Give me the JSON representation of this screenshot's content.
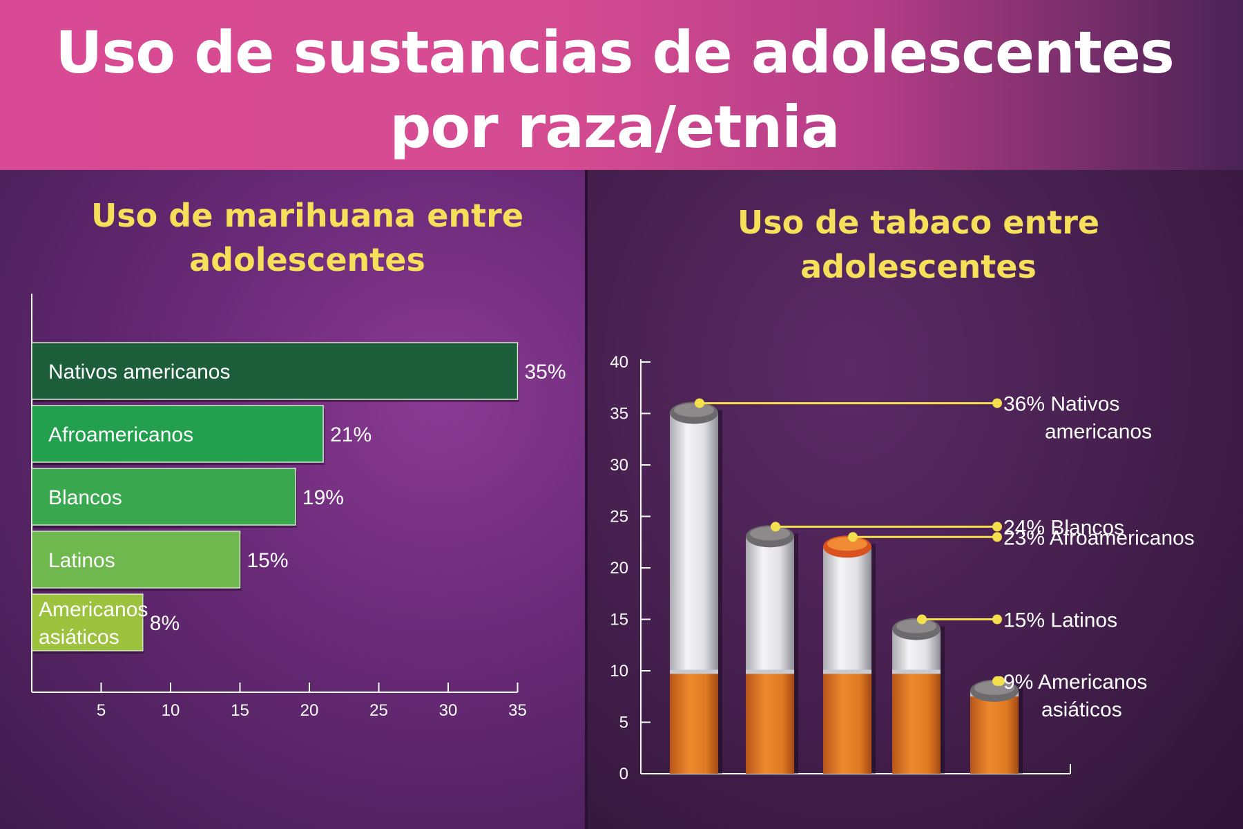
{
  "title": "Uso de sustancias de adolescentes por raza/etnia",
  "title_lines": [
    "Uso de sustancias de adolescentes",
    "por raza/etnia"
  ],
  "colors": {
    "banner": "#d84a93",
    "panel_title": "#f6e05a",
    "callout_line": "#f4e04e",
    "filter": "#e67e22",
    "paper": "#e6e6ea"
  },
  "chart_data": [
    {
      "type": "bar",
      "orientation": "horizontal",
      "title": "Uso de marihuana entre adolescentes",
      "title_lines": [
        "Uso de marihuana entre",
        "adolescentes"
      ],
      "categories": [
        "Nativos americanos",
        "Afroamericanos",
        "Blancos",
        "Latinos",
        "Americanos asiáticos"
      ],
      "category_lines": [
        [
          "Nativos americanos"
        ],
        [
          "Afroamericanos"
        ],
        [
          "Blancos"
        ],
        [
          "Latinos"
        ],
        [
          "Americanos",
          "asiáticos"
        ]
      ],
      "values": [
        35,
        21,
        19,
        15,
        8
      ],
      "value_labels": [
        "35%",
        "21%",
        "19%",
        "15%",
        "8%"
      ],
      "bar_colors": [
        "#1c5e3a",
        "#22a04e",
        "#3aa84e",
        "#6fb84e",
        "#9cc23e"
      ],
      "xticks": [
        5,
        10,
        15,
        20,
        25,
        30,
        35
      ],
      "xlim": [
        0,
        35
      ],
      "xlabel": "",
      "ylabel": "",
      "grid": false
    },
    {
      "type": "bar",
      "style": "cigarettes",
      "title": "Uso de tabaco entre adolescentes",
      "title_lines": [
        "Uso de tabaco entre",
        "adolescentes"
      ],
      "categories": [
        "Nativos americanos",
        "Blancos",
        "Afroamericanos",
        "Latinos",
        "Americanos asiáticos"
      ],
      "bar_order": [
        "Nativos americanos",
        "Blancos",
        "Afroamericanos",
        "Latinos",
        "Americanos asiáticos"
      ],
      "values": [
        36,
        24,
        23,
        15,
        9
      ],
      "callouts": [
        [
          "36% Nativos",
          "americanos"
        ],
        [
          "24% Blancos"
        ],
        [
          "23% Afroamericanos"
        ],
        [
          "15% Latinos"
        ],
        [
          "9% Americanos",
          "asiáticos"
        ]
      ],
      "yticks": [
        0,
        5,
        10,
        15,
        20,
        25,
        30,
        35,
        40
      ],
      "ylim": [
        0,
        40
      ],
      "xlabel": "",
      "ylabel": "",
      "grid": false
    }
  ]
}
